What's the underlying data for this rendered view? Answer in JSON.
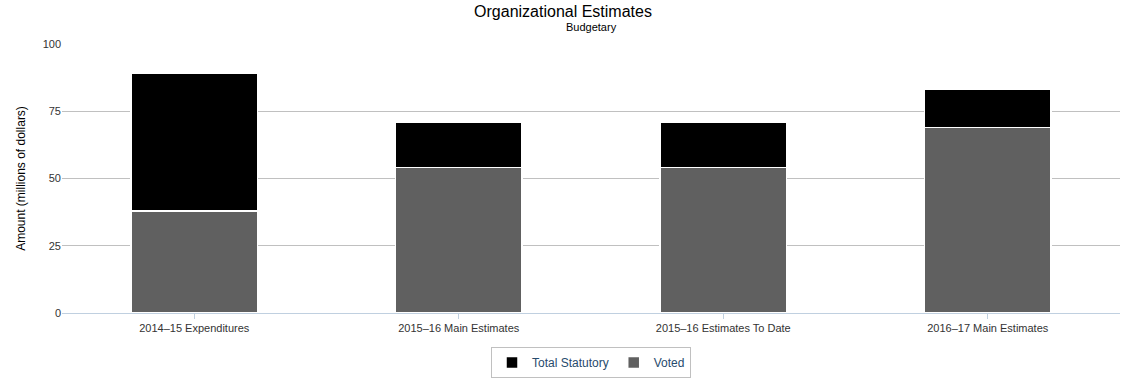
{
  "chart_data": {
    "type": "bar",
    "title": "Organizational Estimates",
    "subtitle": "Budgetary",
    "y_label": "Amount (millions of dollars)",
    "categories": [
      "2014–15 Expenditures",
      "2015–16 Main Estimates",
      "2015–16 Estimates To Date",
      "2016–17 Main Estimates"
    ],
    "series": [
      {
        "name": "Total Statutory",
        "color": "#000000",
        "values": [
          51,
          17,
          17,
          14
        ]
      },
      {
        "name": "Voted",
        "color": "#606060",
        "values": [
          38,
          54,
          54,
          69
        ]
      }
    ],
    "stacked": true,
    "ylim": [
      0,
      100
    ],
    "yticks": [
      0,
      25,
      50,
      75,
      100
    ],
    "grid": true,
    "legend": "bottom"
  }
}
